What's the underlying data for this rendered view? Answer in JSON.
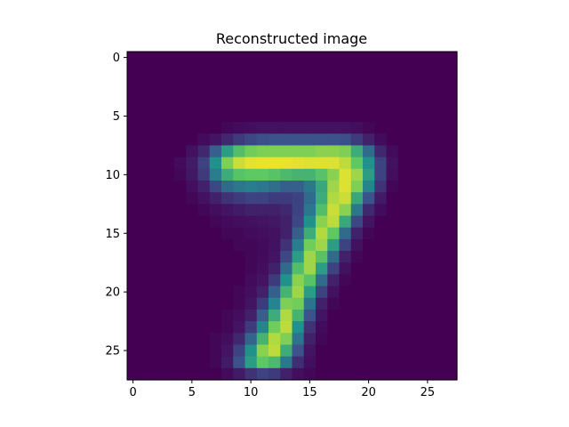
{
  "chart_data": {
    "type": "heatmap",
    "title": "Reconstructed image",
    "xlabel": "",
    "ylabel": "",
    "rows": 28,
    "cols": 28,
    "x_ticks": [
      0,
      5,
      10,
      15,
      20,
      25
    ],
    "y_ticks": [
      0,
      5,
      10,
      15,
      20,
      25
    ],
    "xlim": [
      -0.5,
      27.5
    ],
    "ylim": [
      27.5,
      -0.5
    ],
    "colormap": "viridis",
    "value_range": [
      0,
      1
    ],
    "grid": false,
    "values": [
      [
        0,
        0,
        0,
        0,
        0,
        0,
        0,
        0,
        0,
        0,
        0,
        0,
        0,
        0,
        0,
        0,
        0,
        0,
        0,
        0,
        0,
        0,
        0,
        0,
        0,
        0,
        0,
        0
      ],
      [
        0,
        0,
        0,
        0,
        0,
        0,
        0,
        0,
        0,
        0,
        0,
        0,
        0,
        0,
        0,
        0,
        0,
        0,
        0,
        0,
        0,
        0,
        0,
        0,
        0,
        0,
        0,
        0
      ],
      [
        0,
        0,
        0,
        0,
        0,
        0,
        0,
        0,
        0,
        0,
        0,
        0,
        0,
        0,
        0,
        0,
        0,
        0,
        0,
        0,
        0,
        0,
        0,
        0,
        0,
        0,
        0,
        0
      ],
      [
        0,
        0,
        0,
        0,
        0,
        0,
        0,
        0,
        0,
        0,
        0,
        0,
        0,
        0,
        0,
        0,
        0,
        0,
        0,
        0,
        0,
        0,
        0,
        0,
        0,
        0,
        0,
        0
      ],
      [
        0,
        0,
        0,
        0,
        0,
        0,
        0,
        0,
        0,
        0,
        0,
        0,
        0,
        0,
        0,
        0,
        0,
        0,
        0,
        0,
        0,
        0,
        0,
        0,
        0,
        0,
        0,
        0
      ],
      [
        0,
        0,
        0,
        0,
        0,
        0,
        0,
        0,
        0,
        0,
        0,
        0,
        0,
        0,
        0,
        0,
        0,
        0,
        0,
        0,
        0,
        0,
        0,
        0,
        0,
        0,
        0,
        0
      ],
      [
        0,
        0,
        0,
        0,
        0,
        0,
        0,
        0,
        0.02,
        0.03,
        0.04,
        0.05,
        0.05,
        0.05,
        0.05,
        0.05,
        0.05,
        0.05,
        0.05,
        0.04,
        0.02,
        0,
        0,
        0,
        0,
        0,
        0,
        0
      ],
      [
        0,
        0,
        0,
        0,
        0,
        0,
        0.03,
        0.06,
        0.12,
        0.18,
        0.22,
        0.24,
        0.25,
        0.25,
        0.25,
        0.25,
        0.25,
        0.25,
        0.24,
        0.18,
        0.1,
        0.03,
        0,
        0,
        0,
        0,
        0,
        0
      ],
      [
        0,
        0,
        0,
        0,
        0,
        0.05,
        0.12,
        0.3,
        0.55,
        0.7,
        0.78,
        0.8,
        0.8,
        0.8,
        0.8,
        0.8,
        0.82,
        0.82,
        0.8,
        0.62,
        0.35,
        0.12,
        0.03,
        0,
        0,
        0,
        0,
        0
      ],
      [
        0,
        0,
        0,
        0,
        0.03,
        0.08,
        0.2,
        0.5,
        0.8,
        0.92,
        0.96,
        0.97,
        0.97,
        0.97,
        0.96,
        0.95,
        0.95,
        0.95,
        0.9,
        0.75,
        0.5,
        0.2,
        0.05,
        0,
        0,
        0,
        0,
        0
      ],
      [
        0,
        0,
        0,
        0,
        0.02,
        0.07,
        0.18,
        0.42,
        0.62,
        0.72,
        0.75,
        0.75,
        0.72,
        0.68,
        0.65,
        0.65,
        0.72,
        0.82,
        0.95,
        0.85,
        0.55,
        0.2,
        0.04,
        0,
        0,
        0,
        0,
        0
      ],
      [
        0,
        0,
        0,
        0,
        0,
        0.04,
        0.1,
        0.22,
        0.35,
        0.4,
        0.42,
        0.4,
        0.36,
        0.3,
        0.3,
        0.4,
        0.6,
        0.85,
        0.95,
        0.8,
        0.45,
        0.15,
        0.02,
        0,
        0,
        0,
        0,
        0
      ],
      [
        0,
        0,
        0,
        0,
        0,
        0.02,
        0.05,
        0.1,
        0.15,
        0.18,
        0.2,
        0.2,
        0.18,
        0.18,
        0.2,
        0.35,
        0.62,
        0.88,
        0.92,
        0.6,
        0.25,
        0.08,
        0,
        0,
        0,
        0,
        0,
        0
      ],
      [
        0,
        0,
        0,
        0,
        0,
        0,
        0.02,
        0.04,
        0.06,
        0.08,
        0.1,
        0.1,
        0.1,
        0.12,
        0.2,
        0.4,
        0.7,
        0.92,
        0.82,
        0.4,
        0.12,
        0.03,
        0,
        0,
        0,
        0,
        0,
        0
      ],
      [
        0,
        0,
        0,
        0,
        0,
        0,
        0,
        0.02,
        0.03,
        0.04,
        0.05,
        0.06,
        0.07,
        0.1,
        0.22,
        0.5,
        0.82,
        0.9,
        0.6,
        0.22,
        0.06,
        0,
        0,
        0,
        0,
        0,
        0,
        0
      ],
      [
        0,
        0,
        0,
        0,
        0,
        0,
        0,
        0,
        0.02,
        0.02,
        0.03,
        0.04,
        0.05,
        0.1,
        0.3,
        0.62,
        0.88,
        0.75,
        0.35,
        0.1,
        0.02,
        0,
        0,
        0,
        0,
        0,
        0,
        0
      ],
      [
        0,
        0,
        0,
        0,
        0,
        0,
        0,
        0,
        0,
        0.02,
        0.02,
        0.03,
        0.05,
        0.15,
        0.42,
        0.78,
        0.85,
        0.55,
        0.2,
        0.05,
        0,
        0,
        0,
        0,
        0,
        0,
        0,
        0
      ],
      [
        0,
        0,
        0,
        0,
        0,
        0,
        0,
        0,
        0,
        0,
        0.02,
        0.03,
        0.06,
        0.22,
        0.55,
        0.85,
        0.72,
        0.35,
        0.1,
        0.02,
        0,
        0,
        0,
        0,
        0,
        0,
        0,
        0
      ],
      [
        0,
        0,
        0,
        0,
        0,
        0,
        0,
        0,
        0,
        0,
        0.02,
        0.04,
        0.1,
        0.35,
        0.7,
        0.85,
        0.55,
        0.2,
        0.05,
        0,
        0,
        0,
        0,
        0,
        0,
        0,
        0,
        0
      ],
      [
        0,
        0,
        0,
        0,
        0,
        0,
        0,
        0,
        0,
        0,
        0.03,
        0.06,
        0.18,
        0.5,
        0.82,
        0.72,
        0.35,
        0.1,
        0.02,
        0,
        0,
        0,
        0,
        0,
        0,
        0,
        0,
        0
      ],
      [
        0,
        0,
        0,
        0,
        0,
        0,
        0,
        0,
        0,
        0.02,
        0.04,
        0.1,
        0.3,
        0.65,
        0.85,
        0.55,
        0.2,
        0.05,
        0,
        0,
        0,
        0,
        0,
        0,
        0,
        0,
        0,
        0
      ],
      [
        0,
        0,
        0,
        0,
        0,
        0,
        0,
        0,
        0,
        0.02,
        0.06,
        0.18,
        0.45,
        0.8,
        0.78,
        0.38,
        0.1,
        0.02,
        0,
        0,
        0,
        0,
        0,
        0,
        0,
        0,
        0,
        0
      ],
      [
        0,
        0,
        0,
        0,
        0,
        0,
        0,
        0,
        0.02,
        0.04,
        0.1,
        0.3,
        0.62,
        0.88,
        0.65,
        0.25,
        0.06,
        0,
        0,
        0,
        0,
        0,
        0,
        0,
        0,
        0,
        0,
        0
      ],
      [
        0,
        0,
        0,
        0,
        0,
        0,
        0,
        0,
        0.02,
        0.06,
        0.18,
        0.45,
        0.78,
        0.9,
        0.5,
        0.15,
        0.03,
        0,
        0,
        0,
        0,
        0,
        0,
        0,
        0,
        0,
        0,
        0
      ],
      [
        0,
        0,
        0,
        0,
        0,
        0,
        0,
        0.02,
        0.04,
        0.12,
        0.32,
        0.65,
        0.88,
        0.8,
        0.38,
        0.1,
        0.02,
        0,
        0,
        0,
        0,
        0,
        0,
        0,
        0,
        0,
        0,
        0
      ],
      [
        0,
        0,
        0,
        0,
        0,
        0,
        0,
        0.02,
        0.06,
        0.2,
        0.5,
        0.82,
        0.9,
        0.62,
        0.25,
        0.06,
        0,
        0,
        0,
        0,
        0,
        0,
        0,
        0,
        0,
        0,
        0,
        0
      ],
      [
        0,
        0,
        0,
        0,
        0,
        0,
        0,
        0.02,
        0.08,
        0.25,
        0.55,
        0.75,
        0.68,
        0.4,
        0.14,
        0.04,
        0,
        0,
        0,
        0,
        0,
        0,
        0,
        0,
        0,
        0,
        0,
        0
      ],
      [
        0,
        0,
        0,
        0,
        0,
        0,
        0,
        0,
        0.03,
        0.08,
        0.15,
        0.2,
        0.18,
        0.1,
        0.04,
        0.02,
        0,
        0,
        0,
        0,
        0,
        0,
        0,
        0,
        0,
        0,
        0,
        0
      ]
    ]
  }
}
